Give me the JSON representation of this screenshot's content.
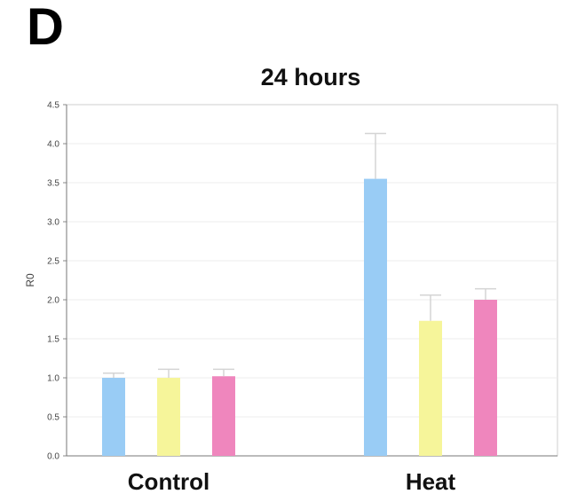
{
  "panel_label": "D",
  "chart_data": {
    "type": "bar",
    "title": "24 hours",
    "xlabel": "",
    "ylabel": "R0",
    "ylim": [
      0,
      4.5
    ],
    "yticks": [
      "0.0",
      "0.5",
      "1.0",
      "1.5",
      "2.0",
      "2.5",
      "3.0",
      "3.5",
      "4.0",
      "4.5"
    ],
    "grid": true,
    "categories": [
      "Control",
      "Heat"
    ],
    "series": [
      {
        "color": "#99ccf5",
        "values": [
          1.0,
          3.55
        ],
        "errors": [
          0.06,
          0.58
        ]
      },
      {
        "color": "#f6f59a",
        "values": [
          1.0,
          1.73
        ],
        "errors": [
          0.11,
          0.33
        ]
      },
      {
        "color": "#ef86bd",
        "values": [
          1.02,
          2.0
        ],
        "errors": [
          0.09,
          0.14
        ]
      }
    ]
  }
}
